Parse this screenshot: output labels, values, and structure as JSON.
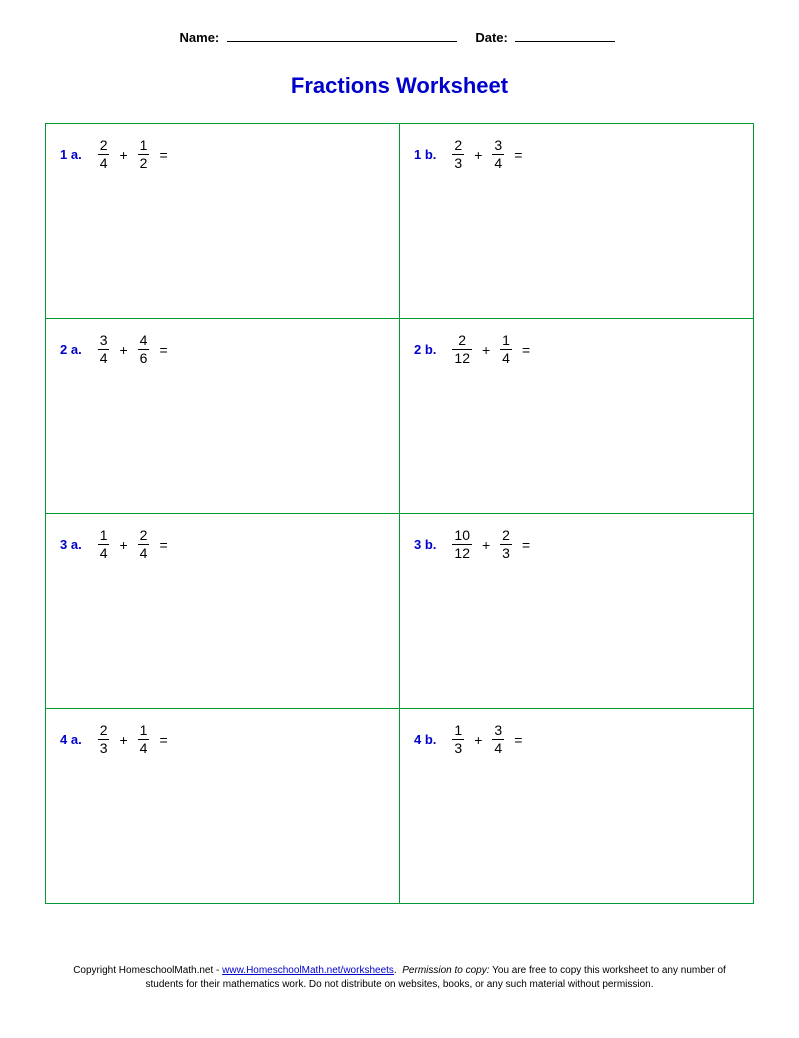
{
  "header": {
    "name_label": "Name:",
    "date_label": "Date:"
  },
  "title": {
    "text": "Fractions Worksheet",
    "color": "#0000cc"
  },
  "colors": {
    "label": "#0000cc",
    "cell_border": "#009933",
    "link": "#0000cc"
  },
  "problems": [
    {
      "label": "1 a.",
      "f1n": "2",
      "f1d": "4",
      "op": "+",
      "f2n": "1",
      "f2d": "2"
    },
    {
      "label": "1 b.",
      "f1n": "2",
      "f1d": "3",
      "op": "+",
      "f2n": "3",
      "f2d": "4"
    },
    {
      "label": "2 a.",
      "f1n": "3",
      "f1d": "4",
      "op": "+",
      "f2n": "4",
      "f2d": "6"
    },
    {
      "label": "2 b.",
      "f1n": "2",
      "f1d": "12",
      "op": "+",
      "f2n": "1",
      "f2d": "4"
    },
    {
      "label": "3 a.",
      "f1n": "1",
      "f1d": "4",
      "op": "+",
      "f2n": "2",
      "f2d": "4"
    },
    {
      "label": "3 b.",
      "f1n": "10",
      "f1d": "12",
      "op": "+",
      "f2n": "2",
      "f2d": "3"
    },
    {
      "label": "4 a.",
      "f1n": "2",
      "f1d": "3",
      "op": "+",
      "f2n": "1",
      "f2d": "4"
    },
    {
      "label": "4 b.",
      "f1n": "1",
      "f1d": "3",
      "op": "+",
      "f2n": "3",
      "f2d": "4"
    }
  ],
  "equals": "=",
  "footer": {
    "copyright_prefix": "Copyright HomeschoolMath.net - ",
    "link_text": "www.HomeschoolMath.net/worksheets",
    "after_link": ". ",
    "perm_label": "Permission to copy:",
    "perm_text": " You are free to copy this worksheet to any number of students for their mathematics work. Do not distribute on websites, books, or any such material without permission."
  }
}
